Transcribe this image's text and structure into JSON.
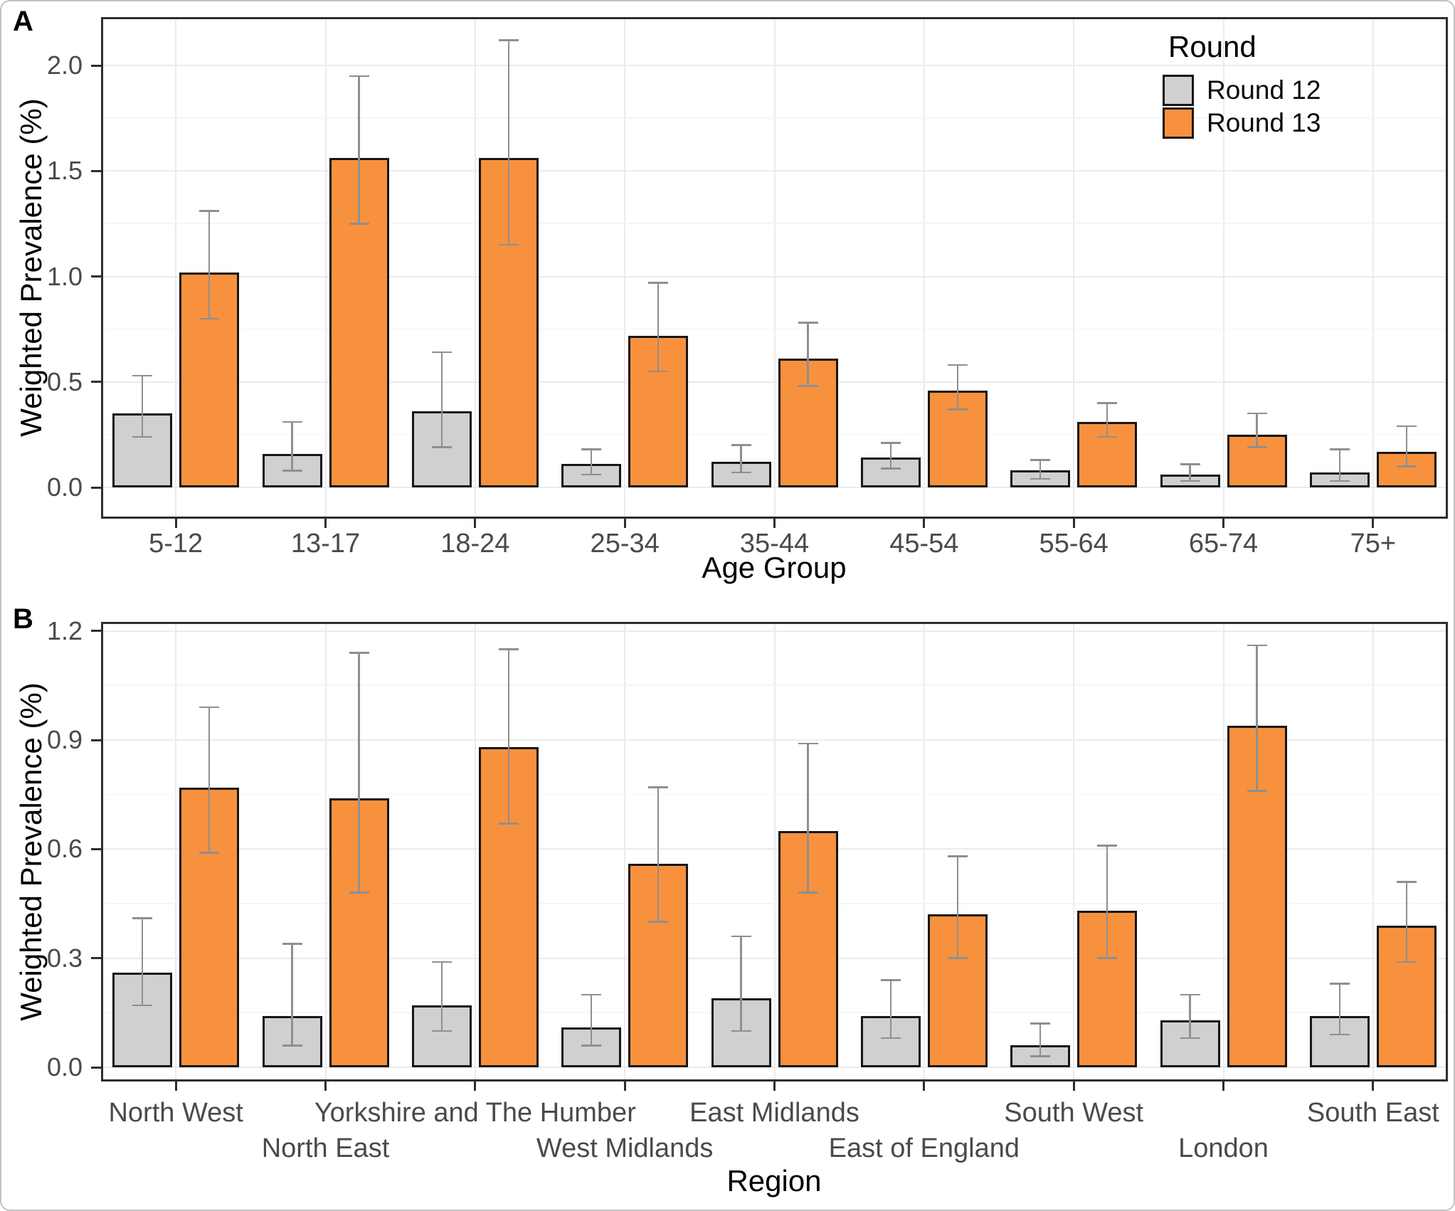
{
  "figure": {
    "panel_a_label": "A",
    "panel_b_label": "B",
    "legend": {
      "title": "Round",
      "entries": [
        {
          "label": "Round 12",
          "color": "#d0d0d0"
        },
        {
          "label": "Round 13",
          "color": "#f8913e"
        }
      ],
      "position": "top-right-inside-panel-A"
    }
  },
  "colors": {
    "round12_fill": "#d0d0d0",
    "round13_fill": "#f8913e",
    "bar_border": "#161616",
    "errorbar": "#8f8f8f",
    "grid_major": "#ebebeb",
    "grid_minor": "#f5f5f5",
    "panel_border": "#2e2e2e",
    "tick_label": "#4a4a4a",
    "background": "#ffffff"
  },
  "chart_data": [
    {
      "type": "bar",
      "panel": "A",
      "title": "",
      "xlabel": "Age Group",
      "ylabel": "Weighted Prevalence (%)",
      "categories": [
        "5-12",
        "13-17",
        "18-24",
        "25-34",
        "35-44",
        "45-54",
        "55-64",
        "65-74",
        "75+"
      ],
      "series": [
        {
          "name": "Round 12",
          "values": [
            0.35,
            0.16,
            0.36,
            0.11,
            0.12,
            0.14,
            0.08,
            0.06,
            0.07
          ],
          "ci_low": [
            0.24,
            0.08,
            0.19,
            0.06,
            0.07,
            0.09,
            0.04,
            0.03,
            0.03
          ],
          "ci_high": [
            0.53,
            0.31,
            0.64,
            0.18,
            0.2,
            0.21,
            0.13,
            0.11,
            0.18
          ]
        },
        {
          "name": "Round 13",
          "values": [
            1.02,
            1.56,
            1.56,
            0.72,
            0.61,
            0.46,
            0.31,
            0.25,
            0.17
          ],
          "ci_low": [
            0.8,
            1.25,
            1.15,
            0.55,
            0.48,
            0.37,
            0.24,
            0.19,
            0.1
          ],
          "ci_high": [
            1.31,
            1.95,
            2.12,
            0.97,
            0.78,
            0.58,
            0.4,
            0.35,
            0.29
          ]
        }
      ],
      "ylim": [
        0,
        2.23
      ],
      "yticks": [
        0.0,
        0.5,
        1.0,
        1.5,
        2.0
      ],
      "ytick_labels": [
        "0.0",
        "0.5",
        "1.0",
        "1.5",
        "2.0"
      ],
      "yticks_minor": [
        0.25,
        0.75,
        1.25,
        1.75
      ],
      "grid": true,
      "legend_position": "top-right inside",
      "error_bars": true
    },
    {
      "type": "bar",
      "panel": "B",
      "title": "",
      "xlabel": "Region",
      "ylabel": "Weighted Prevalence (%)",
      "categories": [
        "North West",
        "North East",
        "Yorkshire and The Humber",
        "West Midlands",
        "East Midlands",
        "East of England",
        "South West",
        "London",
        "South East"
      ],
      "label_stagger": "alternate-two-rows",
      "series": [
        {
          "name": "Round 12",
          "values": [
            0.26,
            0.14,
            0.17,
            0.11,
            0.19,
            0.14,
            0.06,
            0.13,
            0.14
          ],
          "ci_low": [
            0.17,
            0.06,
            0.1,
            0.06,
            0.1,
            0.08,
            0.03,
            0.08,
            0.09
          ],
          "ci_high": [
            0.41,
            0.34,
            0.29,
            0.2,
            0.36,
            0.24,
            0.12,
            0.2,
            0.23
          ]
        },
        {
          "name": "Round 13",
          "values": [
            0.77,
            0.74,
            0.88,
            0.56,
            0.65,
            0.42,
            0.43,
            0.94,
            0.39
          ],
          "ci_low": [
            0.59,
            0.48,
            0.67,
            0.4,
            0.48,
            0.3,
            0.3,
            0.76,
            0.29
          ],
          "ci_high": [
            0.99,
            1.14,
            1.15,
            0.77,
            0.89,
            0.58,
            0.61,
            1.16,
            0.51
          ]
        }
      ],
      "ylim": [
        0,
        1.23
      ],
      "yticks": [
        0.0,
        0.3,
        0.6,
        0.9,
        1.2
      ],
      "ytick_labels": [
        "0.0",
        "0.3",
        "0.6",
        "0.9",
        "1.2"
      ],
      "yticks_minor": [
        0.15,
        0.45,
        0.75,
        1.05
      ],
      "grid": true,
      "legend_position": "none",
      "error_bars": true
    }
  ]
}
